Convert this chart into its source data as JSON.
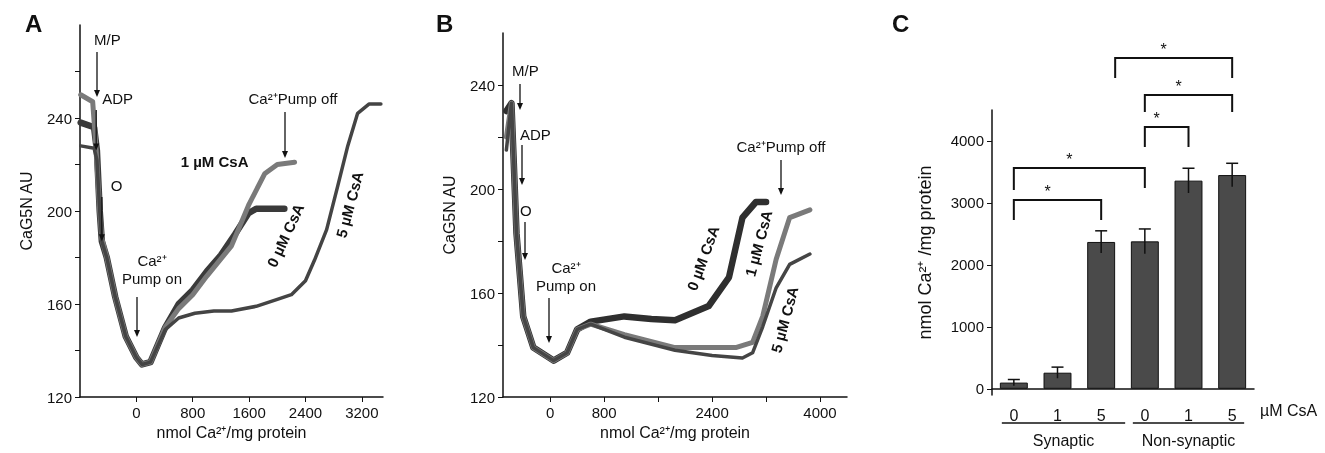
{
  "chart_data": [
    {
      "type": "line",
      "title": "A",
      "xlabel": "nmol Ca²⁺/mg protein",
      "ylabel": "CaG5N AU",
      "xlim": [
        -800,
        3500
      ],
      "xticks": [
        0,
        800,
        1600,
        2400,
        3200
      ],
      "ylim": [
        120,
        280
      ],
      "yticks": [
        120,
        {
          "value": 140,
          "label": null
        },
        160,
        {
          "value": 180,
          "label": null
        },
        200,
        {
          "value": 220,
          "label": null
        },
        240,
        {
          "value": 260,
          "label": null
        }
      ],
      "grid": false,
      "legend": false,
      "marker": "none",
      "line_style": "solid",
      "series": [
        {
          "name": "0 µM CsA",
          "color": "#3a3a3a",
          "x": [
            -790,
            -600,
            -560,
            -520,
            -490,
            -420,
            -300,
            -150,
            0,
            80,
            200,
            410,
            600,
            800,
            1000,
            1200,
            1400,
            1590,
            1700,
            2100
          ],
          "values": [
            238,
            236,
            226,
            200,
            187,
            180,
            163,
            146,
            137,
            134,
            135,
            150,
            160,
            166,
            174,
            181,
            190,
            199,
            201,
            201
          ]
        },
        {
          "name": "1 µM CsA",
          "color": "#7a7a7a",
          "x": [
            -790,
            -620,
            -570,
            -520,
            -490,
            -420,
            -300,
            -150,
            0,
            80,
            200,
            410,
            600,
            800,
            1000,
            1350,
            1600,
            1820,
            2000,
            2245
          ],
          "values": [
            250,
            247,
            226,
            200,
            188,
            180,
            163,
            146,
            137,
            134,
            135,
            150,
            158,
            164,
            172,
            185,
            203,
            216,
            220,
            221
          ]
        },
        {
          "name": "5 µM CsA",
          "color": "#444444",
          "x": [
            -790,
            -600,
            -560,
            -520,
            -490,
            -420,
            -300,
            -150,
            0,
            80,
            200,
            410,
            600,
            830,
            1100,
            1350,
            1700,
            2000,
            2200,
            2400,
            2530,
            2700,
            2860,
            3000,
            3140,
            3300,
            3470
          ],
          "values": [
            228,
            227,
            222,
            200,
            187,
            180,
            163,
            146,
            137,
            134,
            135,
            149,
            154,
            156,
            157,
            157,
            159,
            162,
            164,
            170,
            179,
            192,
            211,
            228,
            242,
            246,
            246
          ]
        }
      ],
      "annotations": [
        "M/P",
        {
          "text": "ADP",
          "x": -570,
          "y": 226
        },
        {
          "text": "O",
          "x": -490,
          "y": 187
        },
        "Ca²⁺\nPump  on",
        "Ca²⁺Pump  off"
      ]
    },
    {
      "type": "line",
      "title": "B",
      "xlabel": "nmol Ca²⁺/mg protein",
      "ylabel": "CaG5N AU",
      "xlim": [
        -700,
        4400
      ],
      "xticks": [
        0,
        800,
        {
          "value": 1600,
          "label": null
        },
        2400,
        {
          "value": 3200,
          "label": null
        },
        4000
      ],
      "ylim": [
        120,
        260
      ],
      "yticks": [
        120,
        {
          "value": 140,
          "label": null
        },
        160,
        {
          "value": 180,
          "label": null
        },
        200,
        {
          "value": 220,
          "label": null
        },
        240
      ],
      "grid": false,
      "legend": false,
      "marker": "none",
      "line_style": "solid",
      "series": [
        {
          "name": "0 µM CsA",
          "color": "#2f2f2f",
          "x": [
            -650,
            -575,
            -540,
            -500,
            -400,
            -250,
            50,
            250,
            400,
            600,
            1100,
            1500,
            1850,
            2350,
            2650,
            2850,
            3050,
            3200
          ],
          "values": [
            230,
            233,
            210,
            183,
            151,
            139,
            134,
            137,
            146,
            149,
            151,
            150,
            149.5,
            155,
            166,
            189,
            195,
            195
          ]
        },
        {
          "name": "1 µM CsA",
          "color": "#7a7a7a",
          "x": [
            -650,
            -575,
            -540,
            -500,
            -400,
            -250,
            50,
            250,
            400,
            600,
            1100,
            1850,
            2750,
            3000,
            3150,
            3350,
            3550,
            3850
          ],
          "values": [
            220,
            233,
            210,
            183,
            151,
            139,
            134,
            137,
            146,
            148,
            144,
            139,
            139,
            141,
            151,
            173,
            189,
            192
          ]
        },
        {
          "name": "5 µM CsA",
          "color": "#454545",
          "x": [
            -650,
            -575,
            -540,
            -500,
            -400,
            -250,
            50,
            250,
            400,
            600,
            1100,
            1850,
            2400,
            2850,
            3000,
            3150,
            3350,
            3550,
            3850
          ],
          "values": [
            215,
            233,
            210,
            183,
            151,
            139,
            134,
            137,
            146,
            148,
            143,
            138,
            136,
            135,
            137,
            147,
            162,
            171,
            175
          ]
        }
      ],
      "annotations": [
        "M/P",
        "ADP",
        "O",
        "Ca²⁺\nPump  on",
        "Ca²⁺Pump  off"
      ]
    },
    {
      "type": "bar",
      "title": "C",
      "xlabel": "µM CsA",
      "ylabel": "nmol Ca²⁺ /mg protein",
      "categories": [
        "0",
        "1",
        "5",
        "0",
        "1",
        "5"
      ],
      "values": [
        100,
        260,
        2370,
        2380,
        3360,
        3450
      ],
      "errors": [
        50,
        90,
        180,
        200,
        200,
        190
      ],
      "color": "#4a4a4a",
      "ylim": [
        -100,
        4500
      ],
      "yticks": [
        0,
        1000,
        2000,
        3000,
        4000
      ],
      "grid": false,
      "legend": false,
      "annotations": [
        "*",
        "*",
        "*",
        "*",
        "*",
        "Synaptic",
        "Non-synaptic"
      ]
    }
  ]
}
